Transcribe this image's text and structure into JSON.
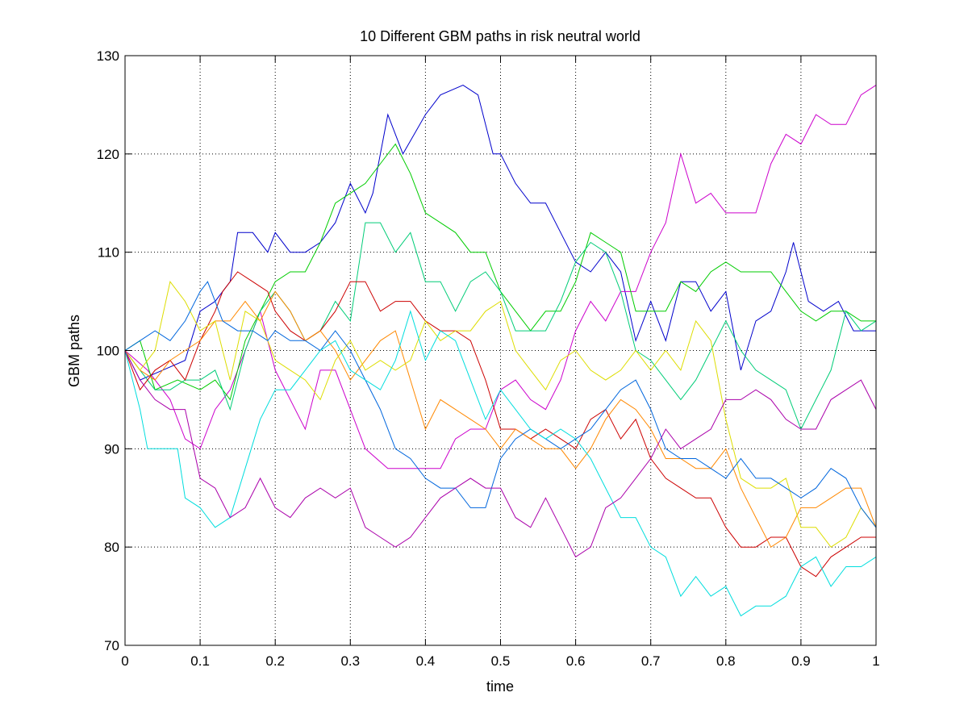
{
  "chart_data": {
    "type": "line",
    "title": "10 Different GBM paths in risk neutral world",
    "xlabel": "time",
    "ylabel": "GBM paths",
    "xlim": [
      0,
      1
    ],
    "ylim": [
      70,
      130
    ],
    "xticks": [
      0,
      0.1,
      0.2,
      0.3,
      0.4,
      0.5,
      0.6,
      0.7,
      0.8,
      0.9,
      1
    ],
    "xtick_labels": [
      "0",
      "0.1",
      "0.2",
      "0.3",
      "0.4",
      "0.5",
      "0.6",
      "0.7",
      "0.8",
      "0.9",
      "1"
    ],
    "yticks": [
      70,
      80,
      90,
      100,
      110,
      120,
      130
    ],
    "ytick_labels": [
      "70",
      "80",
      "90",
      "100",
      "110",
      "120",
      "130"
    ],
    "grid": true,
    "series": [
      {
        "color": "#0000cc",
        "x": [
          0,
          0.02,
          0.05,
          0.08,
          0.1,
          0.12,
          0.14,
          0.15,
          0.17,
          0.19,
          0.2,
          0.22,
          0.24,
          0.26,
          0.28,
          0.3,
          0.32,
          0.33,
          0.35,
          0.37,
          0.4,
          0.42,
          0.45,
          0.47,
          0.49,
          0.5,
          0.52,
          0.54,
          0.56,
          0.58,
          0.6,
          0.62,
          0.64,
          0.66,
          0.68,
          0.7,
          0.72,
          0.74,
          0.76,
          0.78,
          0.8,
          0.82,
          0.84,
          0.86,
          0.88,
          0.89,
          0.91,
          0.93,
          0.95,
          0.97,
          1
        ],
        "y": [
          100,
          97,
          98,
          99,
          104,
          105,
          107,
          112,
          112,
          110,
          112,
          110,
          110,
          111,
          113,
          117,
          114,
          116,
          124,
          120,
          124,
          126,
          127,
          126,
          120,
          120,
          117,
          115,
          115,
          112,
          109,
          108,
          110,
          108,
          101,
          105,
          101,
          107,
          107,
          104,
          106,
          98,
          103,
          104,
          108,
          111,
          105,
          104,
          105,
          102,
          102
        ]
      },
      {
        "color": "#cc00cc",
        "x": [
          0,
          0.03,
          0.06,
          0.08,
          0.1,
          0.12,
          0.14,
          0.16,
          0.18,
          0.2,
          0.22,
          0.24,
          0.26,
          0.28,
          0.3,
          0.32,
          0.35,
          0.37,
          0.4,
          0.42,
          0.44,
          0.46,
          0.48,
          0.5,
          0.52,
          0.54,
          0.56,
          0.58,
          0.6,
          0.62,
          0.64,
          0.66,
          0.68,
          0.7,
          0.72,
          0.74,
          0.76,
          0.78,
          0.8,
          0.82,
          0.84,
          0.86,
          0.88,
          0.9,
          0.92,
          0.94,
          0.96,
          0.98,
          1
        ],
        "y": [
          100,
          98,
          95,
          91,
          90,
          94,
          96,
          100,
          104,
          98,
          95,
          92,
          98,
          98,
          94,
          90,
          88,
          88,
          88,
          88,
          91,
          92,
          92,
          96,
          97,
          95,
          94,
          97,
          102,
          105,
          103,
          106,
          106,
          110,
          113,
          120,
          115,
          116,
          114,
          114,
          114,
          119,
          122,
          121,
          124,
          123,
          123,
          126,
          127
        ]
      },
      {
        "color": "#00cc00",
        "x": [
          0,
          0.02,
          0.04,
          0.07,
          0.1,
          0.12,
          0.14,
          0.16,
          0.18,
          0.2,
          0.22,
          0.24,
          0.26,
          0.28,
          0.3,
          0.32,
          0.34,
          0.36,
          0.38,
          0.4,
          0.42,
          0.44,
          0.46,
          0.48,
          0.5,
          0.52,
          0.54,
          0.56,
          0.58,
          0.6,
          0.62,
          0.64,
          0.66,
          0.68,
          0.7,
          0.72,
          0.74,
          0.76,
          0.78,
          0.8,
          0.82,
          0.84,
          0.86,
          0.88,
          0.9,
          0.92,
          0.94,
          0.96,
          0.98,
          1
        ],
        "y": [
          100,
          101,
          96,
          97,
          96,
          97,
          95,
          101,
          104,
          107,
          108,
          108,
          111,
          115,
          116,
          117,
          119,
          121,
          118,
          114,
          113,
          112,
          110,
          110,
          106,
          104,
          102,
          104,
          104,
          107,
          112,
          111,
          110,
          104,
          104,
          104,
          107,
          106,
          108,
          109,
          108,
          108,
          108,
          106,
          104,
          103,
          104,
          104,
          103,
          103
        ]
      },
      {
        "color": "#00cc77",
        "x": [
          0,
          0.02,
          0.04,
          0.06,
          0.08,
          0.1,
          0.12,
          0.14,
          0.16,
          0.18,
          0.2,
          0.22,
          0.24,
          0.26,
          0.28,
          0.3,
          0.32,
          0.34,
          0.36,
          0.38,
          0.4,
          0.42,
          0.44,
          0.46,
          0.48,
          0.5,
          0.52,
          0.54,
          0.56,
          0.58,
          0.6,
          0.62,
          0.64,
          0.66,
          0.68,
          0.7,
          0.72,
          0.74,
          0.76,
          0.78,
          0.8,
          0.82,
          0.84,
          0.86,
          0.88,
          0.9,
          0.92,
          0.94,
          0.96,
          0.98,
          1
        ],
        "y": [
          100,
          98,
          96,
          96,
          97,
          97,
          98,
          94,
          100,
          104,
          106,
          104,
          101,
          102,
          105,
          103,
          113,
          113,
          110,
          112,
          107,
          107,
          104,
          107,
          108,
          106,
          102,
          102,
          102,
          105,
          109,
          111,
          110,
          106,
          100,
          99,
          97,
          95,
          97,
          100,
          103,
          100,
          98,
          97,
          96,
          92,
          95,
          98,
          104,
          102,
          103
        ]
      },
      {
        "color": "#cc0000",
        "x": [
          0,
          0.02,
          0.04,
          0.06,
          0.08,
          0.1,
          0.12,
          0.13,
          0.15,
          0.17,
          0.19,
          0.2,
          0.22,
          0.24,
          0.26,
          0.28,
          0.3,
          0.32,
          0.34,
          0.36,
          0.38,
          0.4,
          0.42,
          0.44,
          0.46,
          0.48,
          0.5,
          0.52,
          0.54,
          0.56,
          0.58,
          0.6,
          0.62,
          0.64,
          0.66,
          0.68,
          0.7,
          0.72,
          0.74,
          0.76,
          0.78,
          0.8,
          0.82,
          0.84,
          0.86,
          0.88,
          0.9,
          0.92,
          0.94,
          0.96,
          0.98,
          1
        ],
        "y": [
          100,
          96,
          98,
          99,
          97,
          101,
          104,
          106,
          108,
          107,
          106,
          104,
          102,
          101,
          102,
          104,
          107,
          107,
          104,
          105,
          105,
          103,
          102,
          102,
          101,
          97,
          92,
          92,
          91,
          92,
          91,
          90,
          93,
          94,
          91,
          93,
          89,
          87,
          86,
          85,
          85,
          82,
          80,
          80,
          81,
          81,
          78,
          77,
          79,
          80,
          81,
          81
        ]
      },
      {
        "color": "#ff8800",
        "x": [
          0,
          0.02,
          0.04,
          0.06,
          0.08,
          0.1,
          0.12,
          0.14,
          0.16,
          0.18,
          0.2,
          0.22,
          0.24,
          0.26,
          0.28,
          0.3,
          0.32,
          0.34,
          0.36,
          0.38,
          0.4,
          0.42,
          0.44,
          0.46,
          0.48,
          0.5,
          0.52,
          0.54,
          0.56,
          0.58,
          0.6,
          0.62,
          0.64,
          0.66,
          0.68,
          0.7,
          0.72,
          0.74,
          0.76,
          0.78,
          0.8,
          0.82,
          0.84,
          0.86,
          0.88,
          0.9,
          0.92,
          0.94,
          0.96,
          0.98,
          1
        ],
        "y": [
          100,
          98,
          97,
          99,
          100,
          101,
          103,
          103,
          105,
          103,
          106,
          104,
          101,
          102,
          100,
          97,
          99,
          101,
          102,
          97,
          92,
          95,
          94,
          93,
          92,
          90,
          92,
          91,
          90,
          90,
          88,
          90,
          93,
          95,
          94,
          92,
          89,
          89,
          88,
          88,
          90,
          86,
          83,
          80,
          81,
          84,
          84,
          85,
          86,
          86,
          82
        ]
      },
      {
        "color": "#dddd00",
        "x": [
          0,
          0.02,
          0.04,
          0.06,
          0.08,
          0.1,
          0.12,
          0.14,
          0.16,
          0.18,
          0.2,
          0.22,
          0.24,
          0.26,
          0.28,
          0.3,
          0.32,
          0.34,
          0.36,
          0.38,
          0.4,
          0.42,
          0.44,
          0.46,
          0.48,
          0.5,
          0.52,
          0.54,
          0.56,
          0.58,
          0.6,
          0.62,
          0.64,
          0.66,
          0.68,
          0.7,
          0.72,
          0.74,
          0.76,
          0.78,
          0.8,
          0.82,
          0.84,
          0.86,
          0.88,
          0.9,
          0.92,
          0.94,
          0.96,
          0.98,
          1
        ],
        "y": [
          100,
          98,
          100,
          107,
          105,
          102,
          103,
          97,
          104,
          103,
          99,
          98,
          97,
          95,
          99,
          101,
          98,
          99,
          98,
          99,
          103,
          101,
          102,
          102,
          104,
          105,
          100,
          98,
          96,
          99,
          100,
          98,
          97,
          98,
          100,
          98,
          100,
          98,
          103,
          101,
          93,
          87,
          86,
          86,
          87,
          82,
          82,
          80,
          81,
          84,
          82
        ]
      },
      {
        "color": "#0066dd",
        "x": [
          0,
          0.02,
          0.04,
          0.06,
          0.08,
          0.1,
          0.11,
          0.13,
          0.15,
          0.17,
          0.19,
          0.2,
          0.22,
          0.24,
          0.26,
          0.28,
          0.3,
          0.32,
          0.34,
          0.36,
          0.38,
          0.4,
          0.42,
          0.44,
          0.46,
          0.48,
          0.5,
          0.52,
          0.54,
          0.56,
          0.58,
          0.6,
          0.62,
          0.64,
          0.66,
          0.68,
          0.7,
          0.72,
          0.74,
          0.76,
          0.78,
          0.8,
          0.82,
          0.84,
          0.86,
          0.88,
          0.9,
          0.92,
          0.94,
          0.96,
          0.98,
          1
        ],
        "y": [
          100,
          101,
          102,
          101,
          103,
          106,
          107,
          103,
          102,
          102,
          101,
          102,
          101,
          101,
          100,
          102,
          100,
          97,
          94,
          90,
          89,
          87,
          86,
          86,
          84,
          84,
          89,
          91,
          92,
          91,
          90,
          91,
          92,
          94,
          96,
          97,
          94,
          90,
          89,
          89,
          88,
          87,
          89,
          87,
          87,
          86,
          85,
          86,
          88,
          87,
          84,
          82
        ]
      },
      {
        "color": "#00dddd",
        "x": [
          0,
          0.02,
          0.03,
          0.05,
          0.07,
          0.08,
          0.1,
          0.12,
          0.14,
          0.16,
          0.18,
          0.2,
          0.22,
          0.24,
          0.26,
          0.28,
          0.3,
          0.32,
          0.34,
          0.36,
          0.38,
          0.4,
          0.42,
          0.44,
          0.46,
          0.48,
          0.5,
          0.52,
          0.54,
          0.56,
          0.58,
          0.6,
          0.62,
          0.64,
          0.66,
          0.68,
          0.7,
          0.72,
          0.74,
          0.76,
          0.78,
          0.8,
          0.82,
          0.84,
          0.86,
          0.88,
          0.9,
          0.92,
          0.94,
          0.96,
          0.98,
          1
        ],
        "y": [
          100,
          94,
          90,
          90,
          90,
          85,
          84,
          82,
          83,
          88,
          93,
          96,
          96,
          98,
          100,
          101,
          98,
          97,
          96,
          99,
          104,
          99,
          102,
          101,
          97,
          93,
          96,
          94,
          92,
          91,
          92,
          91,
          89,
          86,
          83,
          83,
          80,
          79,
          75,
          77,
          75,
          76,
          73,
          74,
          74,
          75,
          78,
          79,
          76,
          78,
          78,
          79
        ]
      },
      {
        "color": "#aa00aa",
        "x": [
          0,
          0.02,
          0.04,
          0.06,
          0.08,
          0.1,
          0.12,
          0.14,
          0.16,
          0.18,
          0.2,
          0.22,
          0.24,
          0.26,
          0.28,
          0.3,
          0.32,
          0.34,
          0.36,
          0.38,
          0.4,
          0.42,
          0.44,
          0.46,
          0.48,
          0.5,
          0.52,
          0.54,
          0.56,
          0.58,
          0.6,
          0.62,
          0.64,
          0.66,
          0.68,
          0.7,
          0.72,
          0.74,
          0.76,
          0.78,
          0.8,
          0.82,
          0.84,
          0.86,
          0.88,
          0.9,
          0.92,
          0.94,
          0.96,
          0.98,
          1
        ],
        "y": [
          100,
          97,
          95,
          94,
          94,
          87,
          86,
          83,
          84,
          87,
          84,
          83,
          85,
          86,
          85,
          86,
          82,
          81,
          80,
          81,
          83,
          85,
          86,
          87,
          86,
          86,
          83,
          82,
          85,
          82,
          79,
          80,
          84,
          85,
          87,
          89,
          92,
          90,
          91,
          92,
          95,
          95,
          96,
          95,
          93,
          92,
          92,
          95,
          96,
          97,
          94
        ]
      }
    ]
  }
}
